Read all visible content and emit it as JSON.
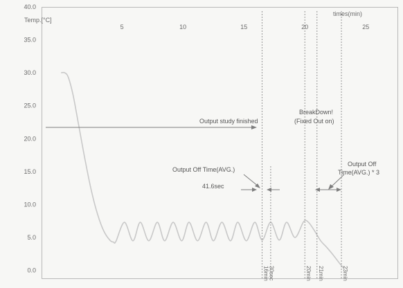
{
  "chart_data": {
    "type": "line",
    "ylabel": "Temp.[°C]",
    "xlabel": "times(min)",
    "xlim": [
      -1.6,
      27.6
    ],
    "ylim": [
      -1.2,
      40
    ],
    "xticks": [
      5,
      10,
      15,
      20,
      25
    ],
    "xtick_labels": [
      "5",
      "10",
      "15",
      "20",
      "25"
    ],
    "yticks": [
      0,
      5,
      10,
      15,
      20,
      25,
      30,
      35,
      40
    ],
    "ytick_labels": [
      "0.0",
      "5.0",
      "10.0",
      "15.0",
      "20.0",
      "25.0",
      "30.0",
      "35.0",
      "40.0"
    ],
    "series": [
      {
        "name": "",
        "color": "#c8c8c8",
        "x": [
          0,
          0.3,
          0.6,
          1.0,
          1.5,
          2.0,
          2.5,
          3.0,
          3.5,
          4.0,
          4.3,
          4.5,
          5.2,
          5.9,
          6.5,
          7.2,
          7.9,
          8.5,
          9.2,
          9.9,
          10.5,
          11.2,
          11.9,
          12.5,
          13.2,
          13.9,
          14.5,
          15.2,
          15.9,
          16.5,
          17.2,
          17.9,
          18.5,
          19.2,
          19.9,
          20.3,
          20.8,
          21.3,
          21.8,
          22.3,
          22.8,
          23.2
        ],
        "y": [
          30.0,
          30.0,
          29.3,
          26.5,
          21.5,
          16.5,
          12.0,
          8.5,
          6.0,
          4.6,
          4.3,
          4.4,
          7.3,
          4.5,
          7.3,
          4.5,
          7.3,
          4.5,
          7.3,
          4.5,
          7.3,
          4.5,
          7.3,
          4.5,
          7.3,
          4.5,
          7.3,
          4.5,
          7.3,
          4.6,
          7.3,
          4.6,
          7.3,
          5.0,
          7.4,
          7.3,
          6.0,
          4.5,
          3.5,
          2.4,
          1.2,
          0.3
        ]
      }
    ],
    "vlines": [
      {
        "x": 16.5,
        "label": "16min 30sec"
      },
      {
        "x": 17.2,
        "label": ""
      },
      {
        "x": 20.0,
        "label": "20min"
      },
      {
        "x": 21.0,
        "label": "21min"
      },
      {
        "x": 23.0,
        "label": "23min"
      }
    ],
    "annotations": {
      "study_finished": "Output study finished",
      "breakdown": "BreakDown!\n(Fixed Out on)",
      "off_time_avg": "Output Off Time(AVG.)",
      "off_time_value": "41.6sec",
      "off_time_avg3": "Output Off\nTime(AVG.) * 3"
    }
  },
  "colors": {
    "background": "#f7f7f5",
    "frame": "#b8b8b8",
    "text": "#6a6a6a",
    "curve": "#c8c8c8",
    "lines": "#7d7d7d"
  }
}
